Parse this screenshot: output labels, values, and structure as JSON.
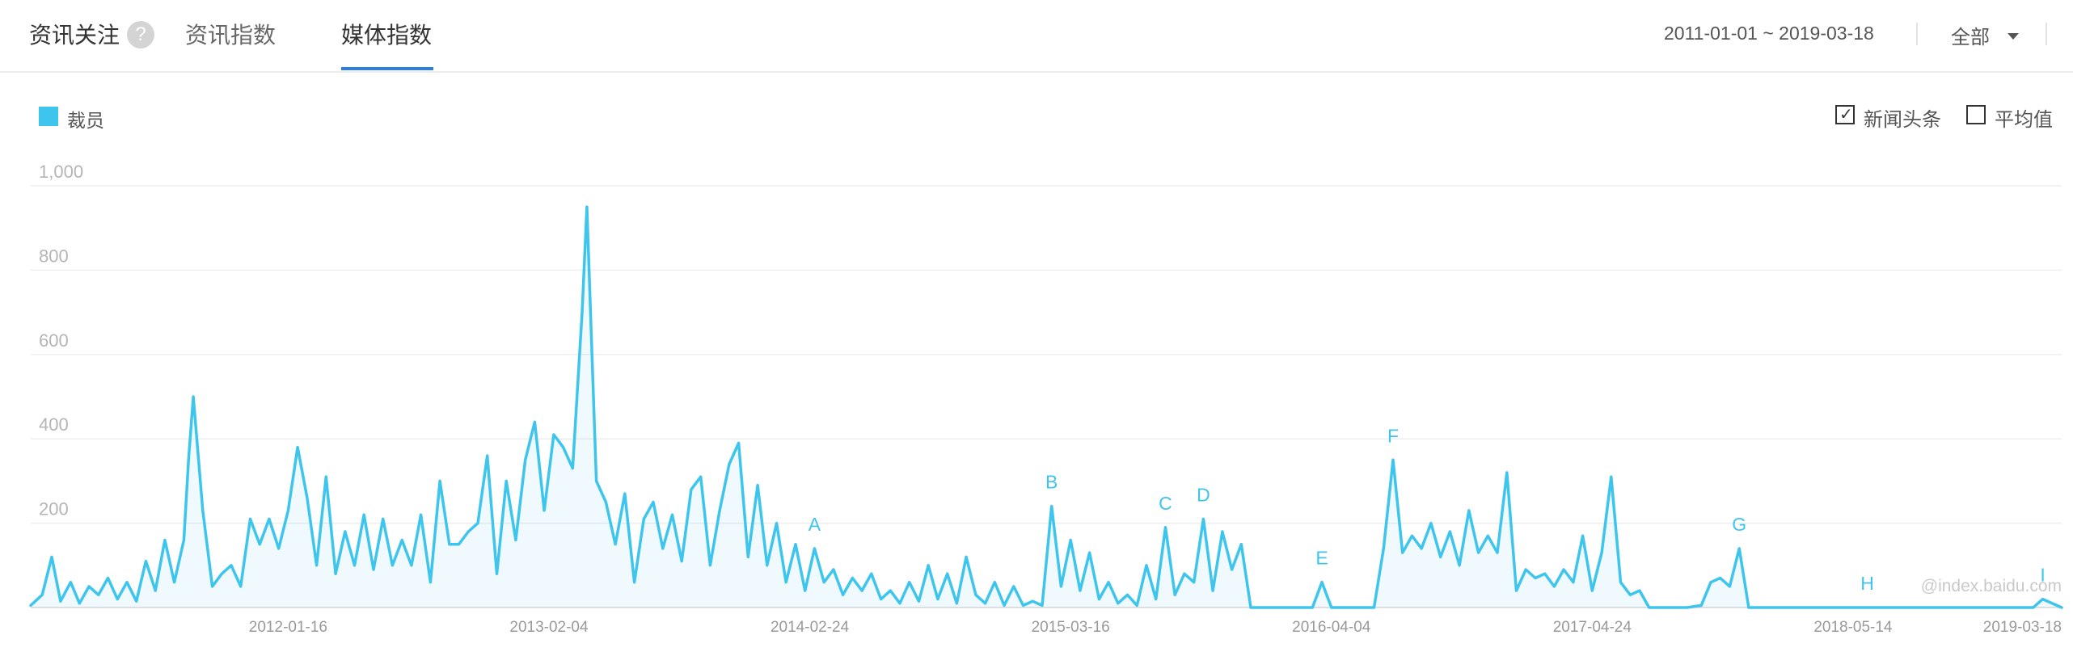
{
  "header": {
    "tab_main": "资讯关注",
    "help_glyph": "?",
    "tab_news_index": "资讯指数",
    "tab_media_index": "媒体指数",
    "date_range": "2011-01-01 ~ 2019-03-18",
    "scope": "全部"
  },
  "legend": {
    "label": "裁员",
    "color": "#3ec5ee"
  },
  "options": {
    "headlines_label": "新闻头条",
    "headlines_checked": true,
    "average_label": "平均值",
    "average_checked": false
  },
  "watermark": "@index.baidu.com",
  "chart_data": {
    "type": "area",
    "title": "",
    "xlabel": "",
    "ylabel": "",
    "ylim": [
      0,
      1000
    ],
    "yticks": [
      0,
      200,
      400,
      600,
      800,
      1000
    ],
    "ytick_labels": [
      "",
      "200",
      "400",
      "600",
      "800",
      "1,000"
    ],
    "x_range": [
      "2011-01-01",
      "2019-03-18"
    ],
    "xticks": [
      "2012-01-16",
      "2013-02-04",
      "2014-02-24",
      "2015-03-16",
      "2016-04-04",
      "2017-04-24",
      "2018-05-14",
      "2019-03-18"
    ],
    "grid": true,
    "legend": "top-left",
    "series": [
      {
        "name": "裁员",
        "color": "#3ec5ee",
        "points": [
          [
            "2011-01-01",
            5
          ],
          [
            "2011-01-18",
            30
          ],
          [
            "2011-02-01",
            120
          ],
          [
            "2011-02-14",
            15
          ],
          [
            "2011-03-01",
            60
          ],
          [
            "2011-03-14",
            10
          ],
          [
            "2011-03-28",
            50
          ],
          [
            "2011-04-11",
            30
          ],
          [
            "2011-04-25",
            70
          ],
          [
            "2011-05-09",
            20
          ],
          [
            "2011-05-23",
            60
          ],
          [
            "2011-06-06",
            15
          ],
          [
            "2011-06-20",
            110
          ],
          [
            "2011-07-04",
            40
          ],
          [
            "2011-07-18",
            160
          ],
          [
            "2011-08-01",
            60
          ],
          [
            "2011-08-15",
            160
          ],
          [
            "2011-08-22",
            350
          ],
          [
            "2011-08-29",
            500
          ],
          [
            "2011-09-12",
            230
          ],
          [
            "2011-09-26",
            50
          ],
          [
            "2011-10-10",
            80
          ],
          [
            "2011-10-24",
            100
          ],
          [
            "2011-11-07",
            50
          ],
          [
            "2011-11-21",
            210
          ],
          [
            "2011-12-05",
            150
          ],
          [
            "2011-12-19",
            210
          ],
          [
            "2012-01-02",
            140
          ],
          [
            "2012-01-16",
            230
          ],
          [
            "2012-01-30",
            380
          ],
          [
            "2012-02-13",
            260
          ],
          [
            "2012-02-27",
            100
          ],
          [
            "2012-03-12",
            310
          ],
          [
            "2012-03-26",
            80
          ],
          [
            "2012-04-09",
            180
          ],
          [
            "2012-04-23",
            100
          ],
          [
            "2012-05-07",
            220
          ],
          [
            "2012-05-21",
            90
          ],
          [
            "2012-06-04",
            210
          ],
          [
            "2012-06-18",
            100
          ],
          [
            "2012-07-02",
            160
          ],
          [
            "2012-07-16",
            100
          ],
          [
            "2012-07-30",
            220
          ],
          [
            "2012-08-13",
            60
          ],
          [
            "2012-08-27",
            300
          ],
          [
            "2012-09-10",
            150
          ],
          [
            "2012-09-24",
            150
          ],
          [
            "2012-10-08",
            180
          ],
          [
            "2012-10-22",
            200
          ],
          [
            "2012-11-05",
            360
          ],
          [
            "2012-11-19",
            80
          ],
          [
            "2012-12-03",
            300
          ],
          [
            "2012-12-17",
            160
          ],
          [
            "2012-12-31",
            350
          ],
          [
            "2013-01-14",
            440
          ],
          [
            "2013-01-28",
            230
          ],
          [
            "2013-02-11",
            410
          ],
          [
            "2013-02-25",
            380
          ],
          [
            "2013-03-11",
            330
          ],
          [
            "2013-03-25",
            700
          ],
          [
            "2013-04-01",
            950
          ],
          [
            "2013-04-15",
            300
          ],
          [
            "2013-04-29",
            250
          ],
          [
            "2013-05-13",
            150
          ],
          [
            "2013-05-27",
            270
          ],
          [
            "2013-06-10",
            60
          ],
          [
            "2013-06-24",
            210
          ],
          [
            "2013-07-08",
            250
          ],
          [
            "2013-07-22",
            140
          ],
          [
            "2013-08-05",
            220
          ],
          [
            "2013-08-19",
            110
          ],
          [
            "2013-09-02",
            280
          ],
          [
            "2013-09-16",
            310
          ],
          [
            "2013-09-30",
            100
          ],
          [
            "2013-10-14",
            230
          ],
          [
            "2013-10-28",
            340
          ],
          [
            "2013-11-11",
            390
          ],
          [
            "2013-11-25",
            120
          ],
          [
            "2013-12-09",
            290
          ],
          [
            "2013-12-23",
            100
          ],
          [
            "2014-01-06",
            200
          ],
          [
            "2014-01-20",
            60
          ],
          [
            "2014-02-03",
            150
          ],
          [
            "2014-02-17",
            40
          ],
          [
            "2014-03-03",
            140
          ],
          [
            "2014-03-17",
            60
          ],
          [
            "2014-03-31",
            90
          ],
          [
            "2014-04-14",
            30
          ],
          [
            "2014-04-28",
            70
          ],
          [
            "2014-05-12",
            40
          ],
          [
            "2014-05-26",
            80
          ],
          [
            "2014-06-09",
            20
          ],
          [
            "2014-06-23",
            40
          ],
          [
            "2014-07-07",
            10
          ],
          [
            "2014-07-21",
            60
          ],
          [
            "2014-08-04",
            15
          ],
          [
            "2014-08-18",
            100
          ],
          [
            "2014-09-01",
            20
          ],
          [
            "2014-09-15",
            80
          ],
          [
            "2014-09-29",
            10
          ],
          [
            "2014-10-13",
            120
          ],
          [
            "2014-10-27",
            30
          ],
          [
            "2014-11-10",
            10
          ],
          [
            "2014-11-24",
            60
          ],
          [
            "2014-12-08",
            5
          ],
          [
            "2014-12-22",
            50
          ],
          [
            "2015-01-05",
            5
          ],
          [
            "2015-01-19",
            15
          ],
          [
            "2015-02-02",
            5
          ],
          [
            "2015-02-16",
            240
          ],
          [
            "2015-03-02",
            50
          ],
          [
            "2015-03-16",
            160
          ],
          [
            "2015-03-30",
            40
          ],
          [
            "2015-04-13",
            130
          ],
          [
            "2015-04-27",
            20
          ],
          [
            "2015-05-11",
            60
          ],
          [
            "2015-05-25",
            10
          ],
          [
            "2015-06-08",
            30
          ],
          [
            "2015-06-22",
            5
          ],
          [
            "2015-07-06",
            100
          ],
          [
            "2015-07-20",
            20
          ],
          [
            "2015-08-03",
            190
          ],
          [
            "2015-08-17",
            30
          ],
          [
            "2015-08-31",
            80
          ],
          [
            "2015-09-14",
            60
          ],
          [
            "2015-09-28",
            210
          ],
          [
            "2015-10-12",
            40
          ],
          [
            "2015-10-26",
            180
          ],
          [
            "2015-11-09",
            90
          ],
          [
            "2015-11-23",
            150
          ],
          [
            "2015-12-07",
            0
          ],
          [
            "2016-01-04",
            0
          ],
          [
            "2016-02-01",
            0
          ],
          [
            "2016-03-07",
            0
          ],
          [
            "2016-03-21",
            60
          ],
          [
            "2016-04-04",
            0
          ],
          [
            "2016-05-02",
            0
          ],
          [
            "2016-06-06",
            0
          ],
          [
            "2016-06-20",
            140
          ],
          [
            "2016-07-04",
            350
          ],
          [
            "2016-07-18",
            130
          ],
          [
            "2016-08-01",
            170
          ],
          [
            "2016-08-15",
            140
          ],
          [
            "2016-08-29",
            200
          ],
          [
            "2016-09-12",
            120
          ],
          [
            "2016-09-26",
            180
          ],
          [
            "2016-10-10",
            100
          ],
          [
            "2016-10-24",
            230
          ],
          [
            "2016-11-07",
            130
          ],
          [
            "2016-11-21",
            170
          ],
          [
            "2016-12-05",
            130
          ],
          [
            "2016-12-19",
            320
          ],
          [
            "2017-01-02",
            40
          ],
          [
            "2017-01-16",
            90
          ],
          [
            "2017-01-30",
            70
          ],
          [
            "2017-02-13",
            80
          ],
          [
            "2017-02-27",
            50
          ],
          [
            "2017-03-13",
            90
          ],
          [
            "2017-03-27",
            60
          ],
          [
            "2017-04-10",
            170
          ],
          [
            "2017-04-24",
            40
          ],
          [
            "2017-05-08",
            130
          ],
          [
            "2017-05-22",
            310
          ],
          [
            "2017-06-05",
            60
          ],
          [
            "2017-06-19",
            30
          ],
          [
            "2017-07-03",
            40
          ],
          [
            "2017-07-17",
            0
          ],
          [
            "2017-08-14",
            0
          ],
          [
            "2017-09-11",
            0
          ],
          [
            "2017-10-02",
            5
          ],
          [
            "2017-10-16",
            60
          ],
          [
            "2017-10-30",
            70
          ],
          [
            "2017-11-13",
            50
          ],
          [
            "2017-11-27",
            140
          ],
          [
            "2017-12-11",
            0
          ],
          [
            "2018-03-05",
            0
          ],
          [
            "2018-06-04",
            0
          ],
          [
            "2018-09-03",
            0
          ],
          [
            "2018-12-03",
            0
          ],
          [
            "2019-02-04",
            0
          ],
          [
            "2019-02-18",
            20
          ],
          [
            "2019-03-18",
            0
          ]
        ]
      }
    ],
    "annotations": [
      {
        "label": "A",
        "date": "2014-03-03",
        "value": 140
      },
      {
        "label": "B",
        "date": "2015-02-16",
        "value": 240
      },
      {
        "label": "C",
        "date": "2015-08-03",
        "value": 190
      },
      {
        "label": "D",
        "date": "2015-09-28",
        "value": 210
      },
      {
        "label": "E",
        "date": "2016-03-21",
        "value": 60
      },
      {
        "label": "F",
        "date": "2016-07-04",
        "value": 350
      },
      {
        "label": "G",
        "date": "2017-11-27",
        "value": 140
      },
      {
        "label": "H",
        "date": "2018-06-04",
        "value": 0
      },
      {
        "label": "I",
        "date": "2019-02-18",
        "value": 20
      }
    ]
  }
}
